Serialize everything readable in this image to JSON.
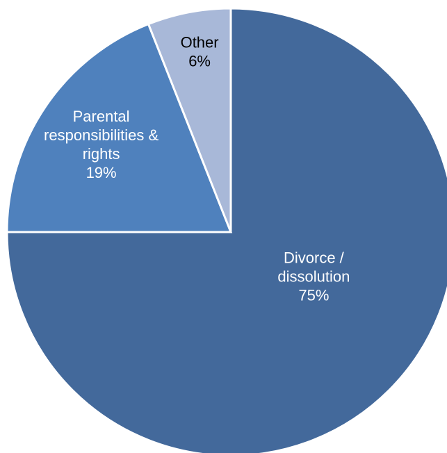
{
  "chart_data": {
    "type": "pie",
    "title": "",
    "slices": [
      {
        "label_lines": [
          "Divorce /",
          "dissolution"
        ],
        "pct_label": "75%",
        "value": 75,
        "color": "#43699b",
        "text_color": "#ffffff"
      },
      {
        "label_lines": [
          "Parental",
          "responsibilities &",
          "rights"
        ],
        "pct_label": "19%",
        "value": 19,
        "color": "#4f81bd",
        "text_color": "#ffffff"
      },
      {
        "label_lines": [
          "Other"
        ],
        "pct_label": "6%",
        "value": 6,
        "color": "#a8b8d8",
        "text_color": "#000000"
      }
    ],
    "start": "12 o'clock",
    "direction": "clockwise",
    "legend": "none"
  }
}
